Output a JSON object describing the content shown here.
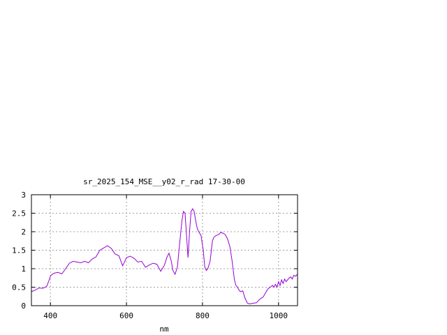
{
  "chart_data": {
    "type": "line",
    "title": "sr_2025_154_MSE__y02_r_rad 17-30-00",
    "xlabel": "nm",
    "ylabel": "",
    "xlim": [
      350,
      1050
    ],
    "ylim": [
      0,
      3
    ],
    "xticks": [
      400,
      600,
      800,
      1000
    ],
    "yticks": [
      0,
      0.5,
      1,
      1.5,
      2,
      2.5,
      3
    ],
    "ytick_labels": [
      "0",
      "0.5",
      "1",
      "1.5",
      "2",
      "2.5",
      "3"
    ],
    "grid": true,
    "line_color": "#9400d3",
    "series": [
      {
        "x": [
          350,
          360,
          370,
          380,
          390,
          395,
          400,
          405,
          410,
          420,
          430,
          440,
          450,
          460,
          470,
          480,
          490,
          500,
          510,
          520,
          530,
          540,
          550,
          560,
          570,
          580,
          590,
          600,
          610,
          620,
          630,
          640,
          650,
          660,
          670,
          680,
          690,
          700,
          706,
          712,
          718,
          722,
          728,
          734,
          740,
          746,
          750,
          754,
          758,
          762,
          766,
          770,
          774,
          778,
          782,
          786,
          790,
          796,
          802,
          806,
          810,
          814,
          820,
          826,
          830,
          836,
          842,
          848,
          854,
          860,
          866,
          872,
          878,
          884,
          888,
          892,
          896,
          900,
          906,
          912,
          918,
          924,
          930,
          936,
          942,
          948,
          954,
          960,
          966,
          972,
          978,
          984,
          988,
          992,
          996,
          1000,
          1004,
          1008,
          1012,
          1016,
          1020,
          1024,
          1028,
          1032,
          1036,
          1040,
          1045,
          1050
        ],
        "values": [
          0.38,
          0.42,
          0.48,
          0.47,
          0.52,
          0.65,
          0.8,
          0.85,
          0.88,
          0.9,
          0.86,
          1.0,
          1.15,
          1.2,
          1.18,
          1.16,
          1.2,
          1.16,
          1.26,
          1.32,
          1.5,
          1.56,
          1.62,
          1.55,
          1.4,
          1.35,
          1.08,
          1.3,
          1.34,
          1.28,
          1.18,
          1.2,
          1.04,
          1.1,
          1.15,
          1.12,
          0.93,
          1.1,
          1.3,
          1.42,
          1.2,
          0.95,
          0.85,
          1.05,
          1.7,
          2.3,
          2.55,
          2.5,
          1.9,
          1.3,
          2.0,
          2.55,
          2.62,
          2.55,
          2.3,
          2.1,
          2.0,
          1.9,
          1.5,
          1.05,
          0.95,
          1.0,
          1.2,
          1.75,
          1.85,
          1.9,
          1.92,
          1.98,
          1.96,
          1.92,
          1.8,
          1.6,
          1.2,
          0.7,
          0.55,
          0.5,
          0.42,
          0.38,
          0.4,
          0.2,
          0.07,
          0.05,
          0.06,
          0.07,
          0.08,
          0.15,
          0.2,
          0.24,
          0.35,
          0.45,
          0.5,
          0.55,
          0.5,
          0.58,
          0.5,
          0.65,
          0.55,
          0.7,
          0.6,
          0.72,
          0.65,
          0.7,
          0.75,
          0.78,
          0.72,
          0.82,
          0.8,
          0.85
        ]
      }
    ]
  }
}
